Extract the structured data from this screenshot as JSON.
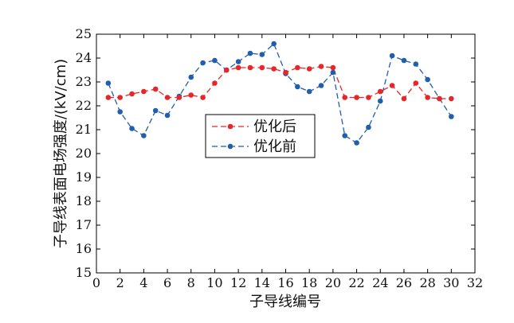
{
  "chart_data": {
    "type": "line",
    "xlabel": "子导线编号",
    "ylabel": "子导线表面电场强度/(kV/cm)",
    "xlim": [
      0,
      32
    ],
    "ylim": [
      15,
      25
    ],
    "x_ticks": [
      0,
      2,
      4,
      6,
      8,
      10,
      12,
      14,
      16,
      18,
      20,
      22,
      24,
      26,
      28,
      30,
      32
    ],
    "y_ticks": [
      15,
      16,
      17,
      18,
      19,
      20,
      21,
      22,
      23,
      24,
      25
    ],
    "grid": false,
    "legend": "center",
    "x": [
      1,
      2,
      3,
      4,
      5,
      6,
      7,
      8,
      9,
      10,
      11,
      12,
      13,
      14,
      15,
      16,
      17,
      18,
      19,
      20,
      21,
      22,
      23,
      24,
      25,
      26,
      27,
      28,
      29,
      30
    ],
    "series": [
      {
        "name": "优化后",
        "color": "#e8262a",
        "values": [
          22.35,
          22.35,
          22.5,
          22.6,
          22.7,
          22.35,
          22.35,
          22.45,
          22.35,
          22.95,
          23.5,
          23.6,
          23.6,
          23.6,
          23.55,
          23.4,
          23.6,
          23.55,
          23.65,
          23.6,
          22.35,
          22.35,
          22.35,
          22.6,
          22.85,
          22.3,
          22.95,
          22.35,
          22.3,
          22.3
        ]
      },
      {
        "name": "优化前",
        "color": "#1f5fae",
        "values": [
          22.95,
          21.75,
          21.05,
          20.75,
          21.8,
          21.6,
          22.4,
          23.2,
          23.8,
          23.9,
          23.5,
          23.85,
          24.2,
          24.15,
          24.6,
          23.35,
          22.8,
          22.6,
          22.85,
          23.4,
          20.75,
          20.45,
          21.1,
          22.2,
          24.1,
          23.9,
          23.75,
          23.1,
          22.3,
          21.55
        ]
      }
    ]
  }
}
